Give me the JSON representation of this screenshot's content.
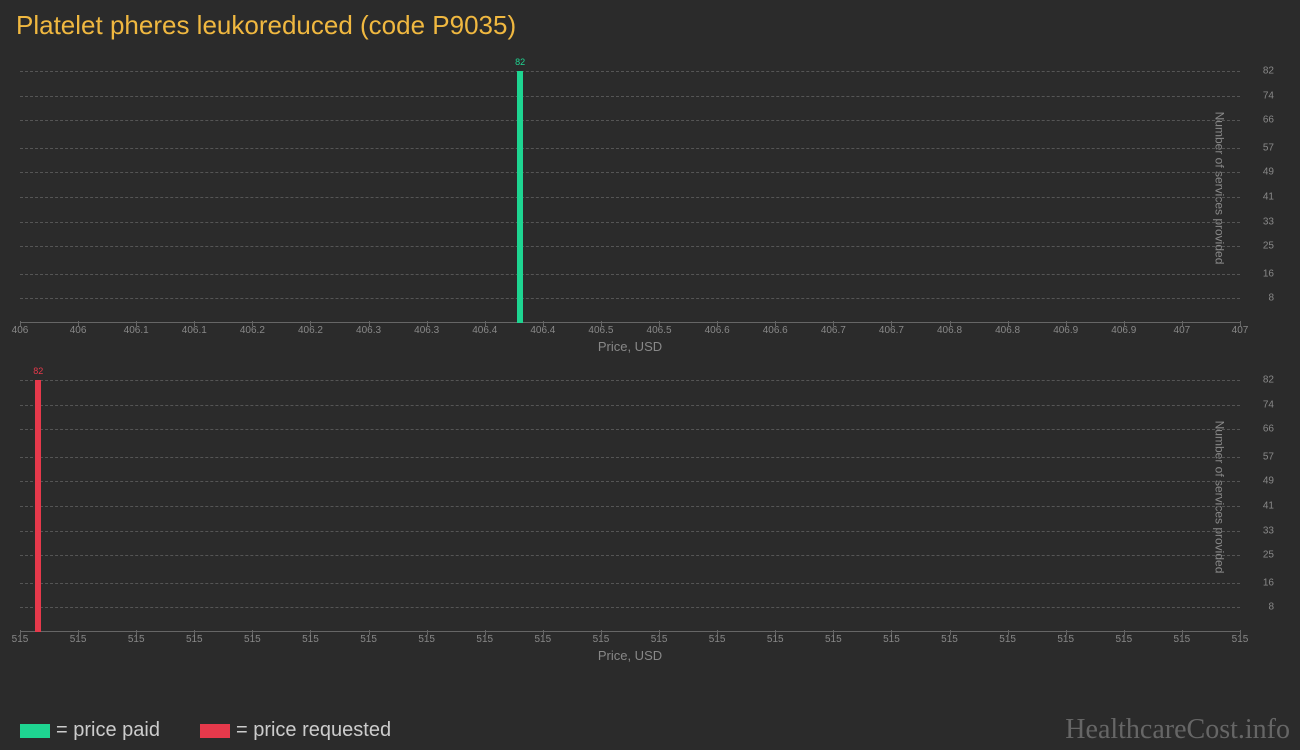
{
  "title": "Platelet pheres leukoreduced (code P9035)",
  "background_color": "#2b2b2b",
  "grid_color": "#555555",
  "axis_color": "#666666",
  "text_color": "#888888",
  "title_color": "#f0b840",
  "chart1": {
    "type": "bar",
    "bar_color": "#1ed591",
    "bar_value": 82,
    "bar_label": "82",
    "bar_x_position": 0.41,
    "x_label": "Price, USD",
    "y_label": "Number of services provided",
    "x_ticks": [
      "406",
      "406",
      "406.1",
      "406.1",
      "406.2",
      "406.2",
      "406.3",
      "406.3",
      "406.4",
      "406.4",
      "406.5",
      "406.5",
      "406.6",
      "406.6",
      "406.7",
      "406.7",
      "406.8",
      "406.8",
      "406.9",
      "406.9",
      "407",
      "407"
    ],
    "y_ticks": [
      8,
      16,
      25,
      33,
      41,
      49,
      57,
      66,
      74,
      82
    ],
    "y_max": 82
  },
  "chart2": {
    "type": "bar",
    "bar_color": "#e6394b",
    "bar_value": 82,
    "bar_label": "82",
    "bar_x_position": 0.015,
    "x_label": "Price, USD",
    "y_label": "Number of services provided",
    "x_ticks": [
      "515",
      "515",
      "515",
      "515",
      "515",
      "515",
      "515",
      "515",
      "515",
      "515",
      "515",
      "515",
      "515",
      "515",
      "515",
      "515",
      "515",
      "515",
      "515",
      "515",
      "515",
      "515"
    ],
    "y_ticks": [
      8,
      16,
      25,
      33,
      41,
      49,
      57,
      66,
      74,
      82
    ],
    "y_max": 82
  },
  "legend": {
    "paid": {
      "color": "#1ed591",
      "label": "= price paid"
    },
    "requested": {
      "color": "#e6394b",
      "label": "= price requested"
    }
  },
  "watermark": "HealthcareCost.info"
}
